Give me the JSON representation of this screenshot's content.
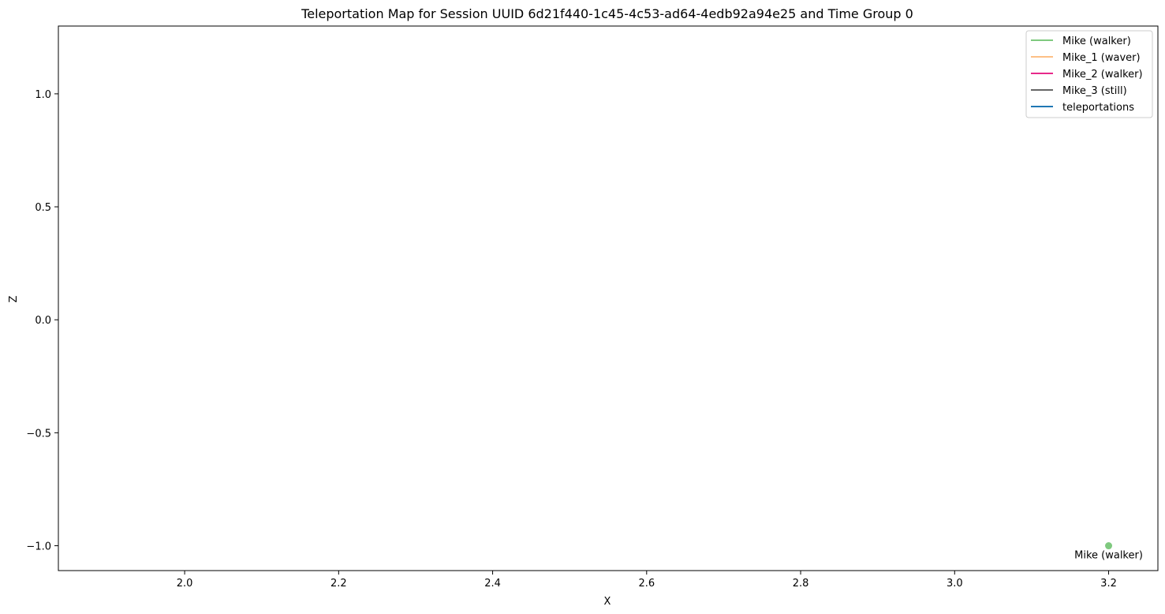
{
  "chart_data": {
    "type": "scatter",
    "title": "Teleportation Map for Session UUID 6d21f440-1c45-4c53-ad64-4edb92a94e25 and Time Group 0",
    "xlabel": "X",
    "ylabel": "Z",
    "xlim": [
      1.836,
      3.264
    ],
    "ylim": [
      -1.11,
      1.3
    ],
    "x_ticks": [
      2.0,
      2.2,
      2.4,
      2.6,
      2.8,
      3.0,
      3.2
    ],
    "x_tick_labels": [
      "2.0",
      "2.2",
      "2.4",
      "2.6",
      "2.8",
      "3.0",
      "3.2"
    ],
    "y_ticks": [
      1.0,
      0.5,
      0.0,
      -0.5,
      -1.0
    ],
    "y_tick_labels": [
      "1.0",
      "0.5",
      "0.0",
      "−0.5",
      "−1.0"
    ],
    "grid": false,
    "legend_position": "top-right",
    "series": [
      {
        "name": "Mike (walker)",
        "color": "#7fc97f",
        "points": [
          {
            "x": 3.2,
            "y": -1.0
          }
        ]
      },
      {
        "name": "Mike_1 (waver)",
        "color": "#fdc086",
        "points": []
      },
      {
        "name": "Mike_2 (walker)",
        "color": "#e7298a",
        "points": []
      },
      {
        "name": "Mike_3 (still)",
        "color": "#666666",
        "points": []
      },
      {
        "name": "teleportations",
        "color": "#1f77b4",
        "points": []
      }
    ],
    "annotations": [
      {
        "text": "Mike (walker)",
        "x": 3.2,
        "y": -1.0
      }
    ]
  }
}
